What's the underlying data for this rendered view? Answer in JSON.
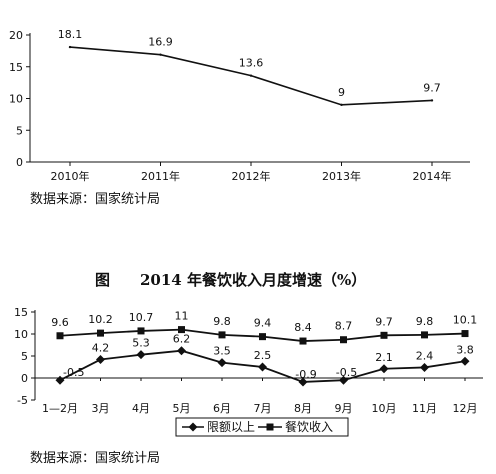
{
  "chart_data": [
    {
      "type": "line",
      "title": "",
      "categories": [
        "2010年",
        "2011年",
        "2012年",
        "2013年",
        "2014年"
      ],
      "series": [
        {
          "values": [
            18.1,
            16.9,
            13.6,
            9,
            9.7
          ],
          "labels": [
            "18.1",
            "16.9",
            "13.6",
            "9",
            "9.7"
          ]
        }
      ],
      "yticks": [
        "0",
        "5",
        "10",
        "15",
        "20"
      ],
      "ylim": [
        0,
        20
      ],
      "source": "数据来源：国家统计局",
      "colors": {
        "line": "#111111"
      }
    },
    {
      "type": "line",
      "title_prefix": "图",
      "title": "2014 年餐饮收入月度增速（%）",
      "categories": [
        "1—2月",
        "3月",
        "4月",
        "5月",
        "6月",
        "7月",
        "8月",
        "9月",
        "10月",
        "11月",
        "12月"
      ],
      "series": [
        {
          "name": "限额以上",
          "marker": "diamond",
          "values": [
            -0.5,
            4.2,
            5.3,
            6.2,
            3.5,
            2.5,
            -0.9,
            -0.5,
            2.1,
            2.4,
            3.8
          ],
          "labels": [
            "-0.5",
            "4.2",
            "5.3",
            "6.2",
            "3.5",
            "2.5",
            "-0.9",
            "-0.5",
            "2.1",
            "2.4",
            "3.8"
          ]
        },
        {
          "name": "餐饮收入",
          "marker": "square",
          "values": [
            9.6,
            10.2,
            10.7,
            11,
            9.8,
            9.4,
            8.4,
            8.7,
            9.7,
            9.8,
            10.1
          ],
          "labels": [
            "9.6",
            "10.2",
            "10.7",
            "11",
            "9.8",
            "9.4",
            "8.4",
            "8.7",
            "9.7",
            "9.8",
            "10.1"
          ]
        }
      ],
      "yticks": [
        "-5",
        "0",
        "5",
        "10",
        "15"
      ],
      "ylim": [
        -5,
        15
      ],
      "legend": "bottom-center",
      "source": "数据来源：国家统计局",
      "colors": {
        "line": "#111111"
      }
    }
  ]
}
